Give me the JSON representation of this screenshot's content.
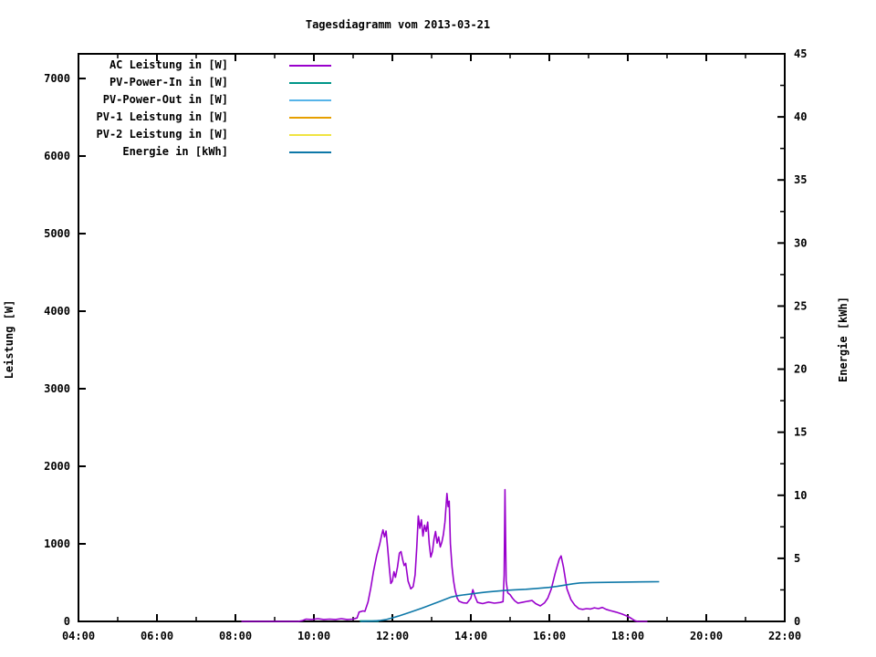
{
  "title": "Tagesdiagramm vom 2013-03-21",
  "chart_data": {
    "type": "line",
    "title": "Tagesdiagramm vom 2013-03-21",
    "ylabel_left": "Leistung [W]",
    "ylabel_right": "Energie [kWh]",
    "x_range_hours": [
      4,
      22
    ],
    "x_tick_hours": [
      4,
      6,
      8,
      10,
      12,
      14,
      16,
      18,
      20,
      22
    ],
    "x_tick_labels": [
      "04:00",
      "06:00",
      "08:00",
      "10:00",
      "12:00",
      "14:00",
      "16:00",
      "18:00",
      "20:00",
      "22:00"
    ],
    "x_minor_hours": [
      5,
      7,
      9,
      11,
      13,
      15,
      17,
      19,
      21
    ],
    "ylim_left": [
      0,
      7318
    ],
    "y_ticks_left": [
      0,
      1000,
      2000,
      3000,
      4000,
      5000,
      6000,
      7000
    ],
    "ylim_right": [
      0,
      45
    ],
    "y_ticks_right": [
      0,
      5,
      10,
      15,
      20,
      25,
      30,
      35,
      40,
      45
    ],
    "y_minor_right": [
      2.5,
      7.5,
      12.5,
      17.5,
      22.5,
      27.5,
      32.5,
      37.5,
      42.5
    ],
    "grid": false,
    "legend_position": "top-left-inside",
    "legend": [
      {
        "label": "AC Leistung in [W]",
        "color": "#9900cc"
      },
      {
        "label": "PV-Power-In in [W]",
        "color": "#009688"
      },
      {
        "label": "PV-Power-Out in [W]",
        "color": "#56b4e9"
      },
      {
        "label": "PV-1 Leistung in [W]",
        "color": "#e69f00"
      },
      {
        "label": "PV-2 Leistung in [W]",
        "color": "#f0e442"
      },
      {
        "label": "Energie in [kWh]",
        "color": "#0e78a8"
      }
    ],
    "series": [
      {
        "name": "AC Leistung in [W]",
        "color": "#9900cc",
        "axis": "left",
        "width": 1.6,
        "points": [
          [
            8.15,
            0
          ],
          [
            8.4,
            0
          ],
          [
            8.7,
            0
          ],
          [
            9.0,
            0
          ],
          [
            9.3,
            0
          ],
          [
            9.6,
            0
          ],
          [
            9.7,
            10
          ],
          [
            9.8,
            30
          ],
          [
            9.95,
            25
          ],
          [
            10.1,
            35
          ],
          [
            10.25,
            25
          ],
          [
            10.4,
            30
          ],
          [
            10.55,
            25
          ],
          [
            10.7,
            35
          ],
          [
            10.85,
            25
          ],
          [
            11.0,
            30
          ],
          [
            11.1,
            45
          ],
          [
            11.15,
            120
          ],
          [
            11.25,
            135
          ],
          [
            11.3,
            130
          ],
          [
            11.38,
            250
          ],
          [
            11.45,
            430
          ],
          [
            11.52,
            650
          ],
          [
            11.6,
            850
          ],
          [
            11.68,
            1000
          ],
          [
            11.72,
            1100
          ],
          [
            11.76,
            1180
          ],
          [
            11.8,
            1090
          ],
          [
            11.84,
            1165
          ],
          [
            11.88,
            950
          ],
          [
            11.92,
            700
          ],
          [
            11.96,
            490
          ],
          [
            12.0,
            520
          ],
          [
            12.04,
            640
          ],
          [
            12.08,
            570
          ],
          [
            12.13,
            700
          ],
          [
            12.18,
            880
          ],
          [
            12.22,
            900
          ],
          [
            12.26,
            800
          ],
          [
            12.3,
            720
          ],
          [
            12.34,
            750
          ],
          [
            12.4,
            520
          ],
          [
            12.47,
            420
          ],
          [
            12.53,
            450
          ],
          [
            12.58,
            600
          ],
          [
            12.62,
            950
          ],
          [
            12.66,
            1360
          ],
          [
            12.7,
            1200
          ],
          [
            12.74,
            1310
          ],
          [
            12.78,
            1100
          ],
          [
            12.82,
            1240
          ],
          [
            12.86,
            1160
          ],
          [
            12.9,
            1280
          ],
          [
            12.94,
            1000
          ],
          [
            12.98,
            830
          ],
          [
            13.02,
            900
          ],
          [
            13.06,
            1060
          ],
          [
            13.1,
            1160
          ],
          [
            13.14,
            1010
          ],
          [
            13.18,
            1090
          ],
          [
            13.22,
            960
          ],
          [
            13.26,
            1020
          ],
          [
            13.3,
            1120
          ],
          [
            13.34,
            1280
          ],
          [
            13.39,
            1650
          ],
          [
            13.42,
            1480
          ],
          [
            13.45,
            1550
          ],
          [
            13.48,
            1000
          ],
          [
            13.52,
            700
          ],
          [
            13.56,
            520
          ],
          [
            13.6,
            400
          ],
          [
            13.65,
            300
          ],
          [
            13.7,
            260
          ],
          [
            13.8,
            240
          ],
          [
            13.9,
            235
          ],
          [
            14.0,
            300
          ],
          [
            14.05,
            410
          ],
          [
            14.1,
            330
          ],
          [
            14.17,
            245
          ],
          [
            14.3,
            230
          ],
          [
            14.45,
            250
          ],
          [
            14.6,
            235
          ],
          [
            14.75,
            245
          ],
          [
            14.82,
            255
          ],
          [
            14.85,
            600
          ],
          [
            14.87,
            1700
          ],
          [
            14.9,
            520
          ],
          [
            14.94,
            370
          ],
          [
            15.0,
            345
          ],
          [
            15.06,
            300
          ],
          [
            15.12,
            265
          ],
          [
            15.2,
            235
          ],
          [
            15.3,
            245
          ],
          [
            15.45,
            260
          ],
          [
            15.56,
            270
          ],
          [
            15.65,
            230
          ],
          [
            15.77,
            200
          ],
          [
            15.88,
            240
          ],
          [
            15.96,
            300
          ],
          [
            16.05,
            420
          ],
          [
            16.15,
            620
          ],
          [
            16.25,
            800
          ],
          [
            16.3,
            845
          ],
          [
            16.36,
            700
          ],
          [
            16.45,
            420
          ],
          [
            16.55,
            280
          ],
          [
            16.65,
            210
          ],
          [
            16.75,
            165
          ],
          [
            16.85,
            155
          ],
          [
            16.95,
            165
          ],
          [
            17.05,
            160
          ],
          [
            17.15,
            175
          ],
          [
            17.25,
            165
          ],
          [
            17.35,
            180
          ],
          [
            17.45,
            155
          ],
          [
            17.55,
            140
          ],
          [
            17.7,
            120
          ],
          [
            17.85,
            95
          ],
          [
            18.0,
            65
          ],
          [
            18.1,
            35
          ],
          [
            18.18,
            10
          ],
          [
            18.25,
            0
          ],
          [
            18.5,
            0
          ]
        ]
      },
      {
        "name": "PV-Power-In in [W]",
        "color": "#009688",
        "axis": "left",
        "width": 2,
        "points": [
          [
            11.17,
            5
          ],
          [
            11.65,
            5
          ]
        ]
      },
      {
        "name": "Energie in [kWh]",
        "color": "#0e78a8",
        "axis": "right",
        "width": 1.6,
        "points": [
          [
            11.2,
            0
          ],
          [
            11.5,
            0.02
          ],
          [
            11.7,
            0.08
          ],
          [
            11.85,
            0.15
          ],
          [
            12.0,
            0.28
          ],
          [
            12.15,
            0.42
          ],
          [
            12.3,
            0.57
          ],
          [
            12.45,
            0.72
          ],
          [
            12.6,
            0.88
          ],
          [
            12.75,
            1.05
          ],
          [
            12.9,
            1.22
          ],
          [
            13.05,
            1.4
          ],
          [
            13.2,
            1.58
          ],
          [
            13.35,
            1.75
          ],
          [
            13.5,
            1.93
          ],
          [
            13.65,
            2.03
          ],
          [
            13.8,
            2.1
          ],
          [
            14.0,
            2.18
          ],
          [
            14.2,
            2.26
          ],
          [
            14.4,
            2.33
          ],
          [
            14.6,
            2.38
          ],
          [
            14.87,
            2.45
          ],
          [
            15.1,
            2.5
          ],
          [
            15.4,
            2.55
          ],
          [
            15.7,
            2.62
          ],
          [
            16.0,
            2.7
          ],
          [
            16.2,
            2.78
          ],
          [
            16.4,
            2.88
          ],
          [
            16.6,
            2.98
          ],
          [
            16.8,
            3.05
          ],
          [
            17.1,
            3.08
          ],
          [
            17.5,
            3.1
          ],
          [
            17.9,
            3.12
          ],
          [
            18.3,
            3.13
          ],
          [
            18.6,
            3.14
          ],
          [
            18.8,
            3.15
          ]
        ]
      }
    ]
  }
}
